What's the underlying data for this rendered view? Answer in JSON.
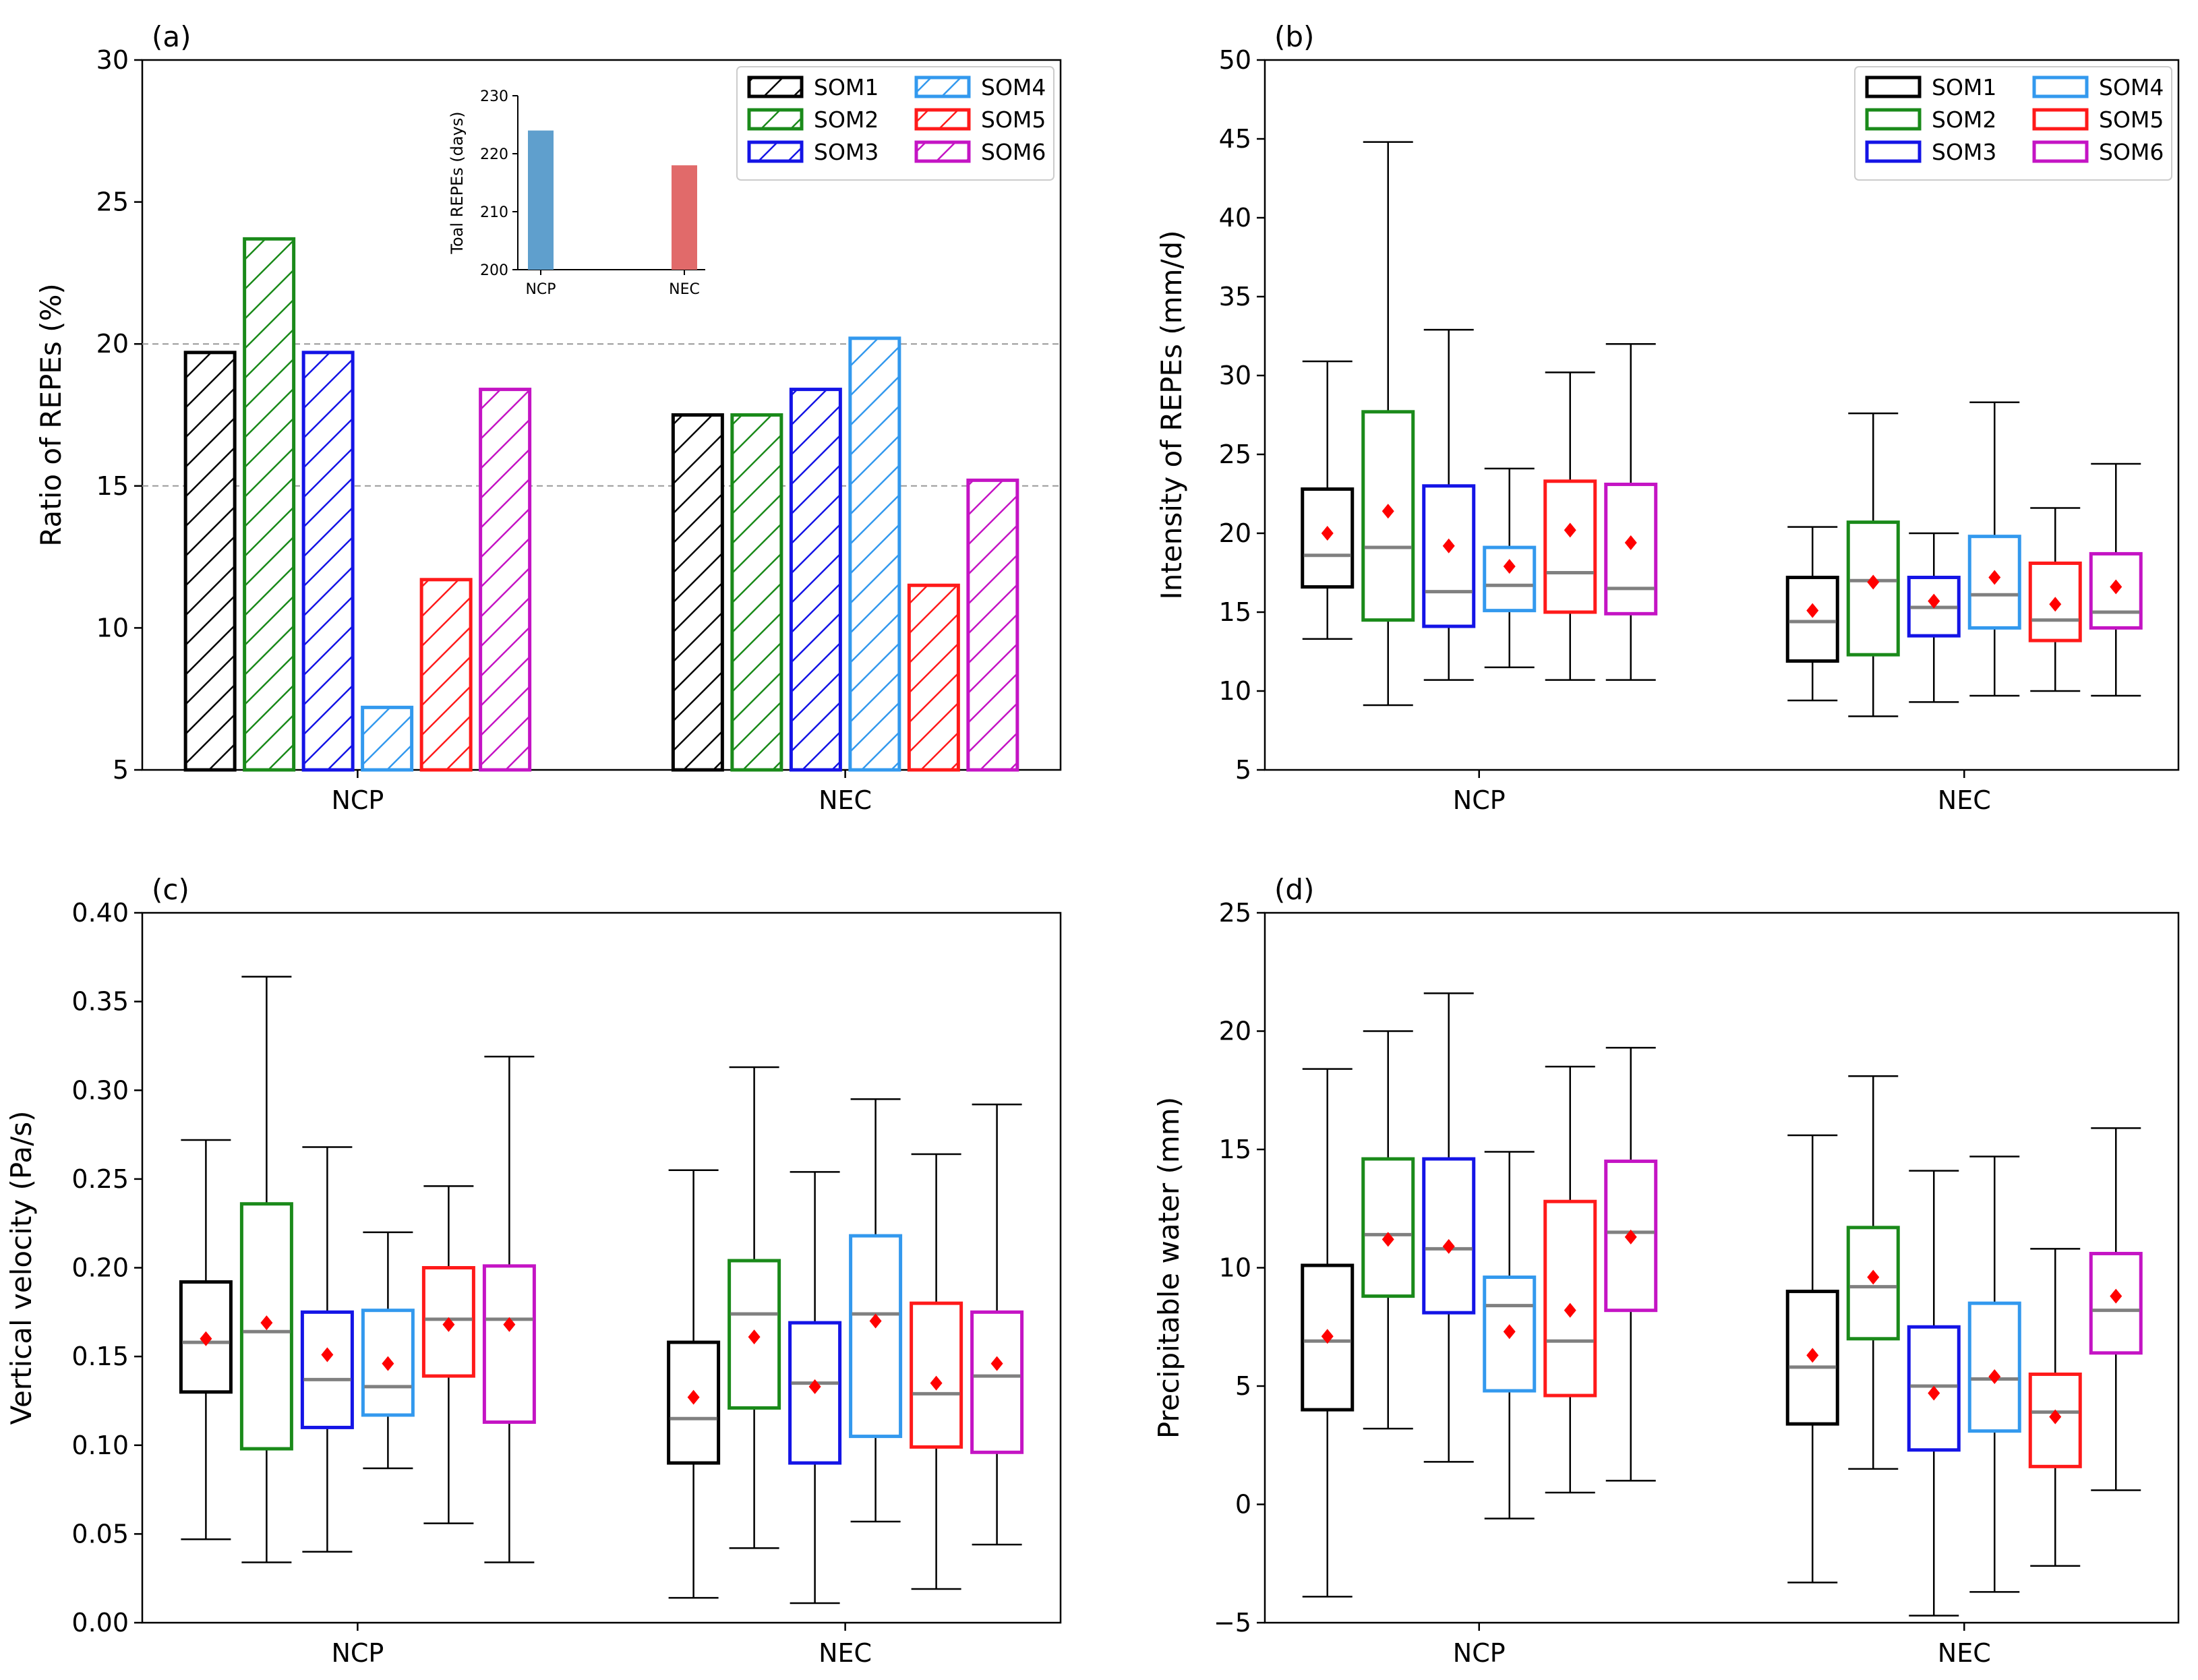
{
  "colors": {
    "SOM1": "#000000",
    "SOM2": "#1a8a1a",
    "SOM3": "#1414e6",
    "SOM4": "#3399ee",
    "SOM5": "#ff1a1a",
    "SOM6": "#c414c4",
    "median": "#808080",
    "mean": "#ff0000",
    "inset_NCP": "#5f9fcd",
    "inset_NEC": "#e16a6a",
    "grid": "#999999"
  },
  "legend": [
    "SOM1",
    "SOM2",
    "SOM3",
    "SOM4",
    "SOM5",
    "SOM6"
  ],
  "chart_data": [
    {
      "id": "a",
      "panel_label": "(a)",
      "type": "bar",
      "ylabel": "Ratio of REPEs (%)",
      "ylim": [
        5,
        30
      ],
      "yticks": [
        "5",
        "10",
        "15",
        "20",
        "25",
        "30"
      ],
      "categories": [
        "NCP",
        "NEC"
      ],
      "hlines": [
        15,
        20
      ],
      "legend_position": "top-right",
      "series": [
        {
          "name": "SOM1",
          "values": [
            19.7,
            17.5
          ]
        },
        {
          "name": "SOM2",
          "values": [
            23.7,
            17.5
          ]
        },
        {
          "name": "SOM3",
          "values": [
            19.7,
            18.4
          ]
        },
        {
          "name": "SOM4",
          "values": [
            7.2,
            20.2
          ]
        },
        {
          "name": "SOM5",
          "values": [
            11.7,
            11.5
          ]
        },
        {
          "name": "SOM6",
          "values": [
            18.4,
            15.2
          ]
        }
      ],
      "inset": {
        "type": "bar",
        "ylabel": "Toal REPEs (days)",
        "ylim": [
          200,
          230
        ],
        "yticks": [
          "200",
          "210",
          "220",
          "230"
        ],
        "categories": [
          "NCP",
          "NEC"
        ],
        "values": [
          224,
          218
        ]
      }
    },
    {
      "id": "b",
      "panel_label": "(b)",
      "type": "box",
      "ylabel": "Intensity of REPEs (mm/d)",
      "ylim": [
        5,
        50
      ],
      "yticks": [
        "5",
        "10",
        "15",
        "20",
        "25",
        "30",
        "35",
        "40",
        "45",
        "50"
      ],
      "categories": [
        "NCP",
        "NEC"
      ],
      "legend_position": "top-right",
      "series": [
        {
          "name": "SOM1",
          "boxes": [
            {
              "whislo": 13.3,
              "q1": 16.6,
              "med": 18.6,
              "q3": 22.8,
              "whishi": 30.9,
              "mean": 20.0
            },
            {
              "whislo": 9.4,
              "q1": 11.9,
              "med": 14.4,
              "q3": 17.2,
              "whishi": 20.4,
              "mean": 15.1
            }
          ]
        },
        {
          "name": "SOM2",
          "boxes": [
            {
              "whislo": 9.1,
              "q1": 14.5,
              "med": 19.1,
              "q3": 27.7,
              "whishi": 44.8,
              "mean": 21.4
            },
            {
              "whislo": 8.4,
              "q1": 12.3,
              "med": 17.0,
              "q3": 20.7,
              "whishi": 27.6,
              "mean": 16.9
            }
          ]
        },
        {
          "name": "SOM3",
          "boxes": [
            {
              "whislo": 10.7,
              "q1": 14.1,
              "med": 16.3,
              "q3": 23.0,
              "whishi": 32.9,
              "mean": 19.2
            },
            {
              "whislo": 9.3,
              "q1": 13.5,
              "med": 15.3,
              "q3": 17.2,
              "whishi": 20.0,
              "mean": 15.7
            }
          ]
        },
        {
          "name": "SOM4",
          "boxes": [
            {
              "whislo": 11.5,
              "q1": 15.1,
              "med": 16.7,
              "q3": 19.1,
              "whishi": 24.1,
              "mean": 17.9
            },
            {
              "whislo": 9.7,
              "q1": 14.0,
              "med": 16.1,
              "q3": 19.8,
              "whishi": 28.3,
              "mean": 17.2
            }
          ]
        },
        {
          "name": "SOM5",
          "boxes": [
            {
              "whislo": 10.7,
              "q1": 15.0,
              "med": 17.5,
              "q3": 23.3,
              "whishi": 30.2,
              "mean": 20.2
            },
            {
              "whislo": 10.0,
              "q1": 13.2,
              "med": 14.5,
              "q3": 18.1,
              "whishi": 21.6,
              "mean": 15.5
            }
          ]
        },
        {
          "name": "SOM6",
          "boxes": [
            {
              "whislo": 10.7,
              "q1": 14.9,
              "med": 16.5,
              "q3": 23.1,
              "whishi": 32.0,
              "mean": 19.4
            },
            {
              "whislo": 9.7,
              "q1": 14.0,
              "med": 15.0,
              "q3": 18.7,
              "whishi": 24.4,
              "mean": 16.6
            }
          ]
        }
      ]
    },
    {
      "id": "c",
      "panel_label": "(c)",
      "type": "box",
      "ylabel": "Vertical velocity (Pa/s)",
      "ylim": [
        0,
        0.4
      ],
      "yticks": [
        "0.00",
        "0.05",
        "0.10",
        "0.15",
        "0.20",
        "0.25",
        "0.30",
        "0.35",
        "0.40"
      ],
      "categories": [
        "NCP",
        "NEC"
      ],
      "series": [
        {
          "name": "SOM1",
          "boxes": [
            {
              "whislo": 0.047,
              "q1": 0.13,
              "med": 0.158,
              "q3": 0.192,
              "whishi": 0.272,
              "mean": 0.16
            },
            {
              "whislo": 0.014,
              "q1": 0.09,
              "med": 0.115,
              "q3": 0.158,
              "whishi": 0.255,
              "mean": 0.127
            }
          ]
        },
        {
          "name": "SOM2",
          "boxes": [
            {
              "whislo": 0.034,
              "q1": 0.098,
              "med": 0.164,
              "q3": 0.236,
              "whishi": 0.364,
              "mean": 0.169
            },
            {
              "whislo": 0.042,
              "q1": 0.121,
              "med": 0.174,
              "q3": 0.204,
              "whishi": 0.313,
              "mean": 0.161
            }
          ]
        },
        {
          "name": "SOM3",
          "boxes": [
            {
              "whislo": 0.04,
              "q1": 0.11,
              "med": 0.137,
              "q3": 0.175,
              "whishi": 0.268,
              "mean": 0.151
            },
            {
              "whislo": 0.011,
              "q1": 0.09,
              "med": 0.135,
              "q3": 0.169,
              "whishi": 0.254,
              "mean": 0.133
            }
          ]
        },
        {
          "name": "SOM4",
          "boxes": [
            {
              "whislo": 0.087,
              "q1": 0.117,
              "med": 0.133,
              "q3": 0.176,
              "whishi": 0.22,
              "mean": 0.146
            },
            {
              "whislo": 0.057,
              "q1": 0.105,
              "med": 0.174,
              "q3": 0.218,
              "whishi": 0.295,
              "mean": 0.17
            }
          ]
        },
        {
          "name": "SOM5",
          "boxes": [
            {
              "whislo": 0.056,
              "q1": 0.139,
              "med": 0.171,
              "q3": 0.2,
              "whishi": 0.246,
              "mean": 0.168
            },
            {
              "whislo": 0.019,
              "q1": 0.099,
              "med": 0.129,
              "q3": 0.18,
              "whishi": 0.264,
              "mean": 0.135
            }
          ]
        },
        {
          "name": "SOM6",
          "boxes": [
            {
              "whislo": 0.034,
              "q1": 0.113,
              "med": 0.171,
              "q3": 0.201,
              "whishi": 0.319,
              "mean": 0.168
            },
            {
              "whislo": 0.044,
              "q1": 0.096,
              "med": 0.139,
              "q3": 0.175,
              "whishi": 0.292,
              "mean": 0.146
            }
          ]
        }
      ]
    },
    {
      "id": "d",
      "panel_label": "(d)",
      "type": "box",
      "ylabel": "Precipitable water (mm)",
      "ylim": [
        -5,
        25
      ],
      "yticks": [
        "−5",
        "0",
        "5",
        "10",
        "15",
        "20",
        "25"
      ],
      "categories": [
        "NCP",
        "NEC"
      ],
      "series": [
        {
          "name": "SOM1",
          "boxes": [
            {
              "whislo": -3.9,
              "q1": 4.0,
              "med": 6.9,
              "q3": 10.1,
              "whishi": 18.4,
              "mean": 7.1
            },
            {
              "whislo": -3.3,
              "q1": 3.4,
              "med": 5.8,
              "q3": 9.0,
              "whishi": 15.6,
              "mean": 6.3
            }
          ]
        },
        {
          "name": "SOM2",
          "boxes": [
            {
              "whislo": 3.2,
              "q1": 8.8,
              "med": 11.4,
              "q3": 14.6,
              "whishi": 20.0,
              "mean": 11.2
            },
            {
              "whislo": 1.5,
              "q1": 7.0,
              "med": 9.2,
              "q3": 11.7,
              "whishi": 18.1,
              "mean": 9.6
            }
          ]
        },
        {
          "name": "SOM3",
          "boxes": [
            {
              "whislo": 1.8,
              "q1": 8.1,
              "med": 10.8,
              "q3": 14.6,
              "whishi": 21.6,
              "mean": 10.9
            },
            {
              "whislo": -4.7,
              "q1": 2.3,
              "med": 5.0,
              "q3": 7.5,
              "whishi": 14.1,
              "mean": 4.7
            }
          ]
        },
        {
          "name": "SOM4",
          "boxes": [
            {
              "whislo": -0.6,
              "q1": 4.8,
              "med": 8.4,
              "q3": 9.6,
              "whishi": 14.9,
              "mean": 7.3
            },
            {
              "whislo": -3.7,
              "q1": 3.1,
              "med": 5.3,
              "q3": 8.5,
              "whishi": 14.7,
              "mean": 5.4
            }
          ]
        },
        {
          "name": "SOM5",
          "boxes": [
            {
              "whislo": 0.5,
              "q1": 4.6,
              "med": 6.9,
              "q3": 12.8,
              "whishi": 18.5,
              "mean": 8.2
            },
            {
              "whislo": -2.6,
              "q1": 1.6,
              "med": 3.9,
              "q3": 5.5,
              "whishi": 10.8,
              "mean": 3.7
            }
          ]
        },
        {
          "name": "SOM6",
          "boxes": [
            {
              "whislo": 1.0,
              "q1": 8.2,
              "med": 11.5,
              "q3": 14.5,
              "whishi": 19.3,
              "mean": 11.3
            },
            {
              "whislo": 0.6,
              "q1": 6.4,
              "med": 8.2,
              "q3": 10.6,
              "whishi": 15.9,
              "mean": 8.8
            }
          ]
        }
      ]
    }
  ]
}
